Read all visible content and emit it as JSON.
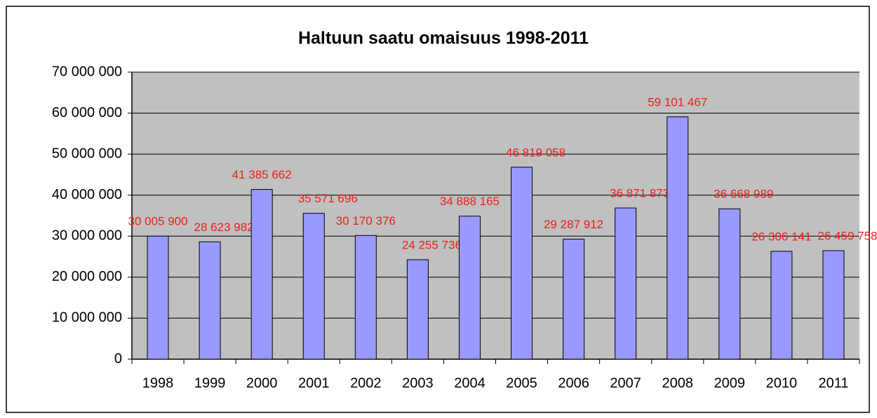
{
  "chart_data": {
    "type": "bar",
    "title": "Haltuun saatu omaisuus 1998-2011",
    "categories": [
      "1998",
      "1999",
      "2000",
      "2001",
      "2002",
      "2003",
      "2004",
      "2005",
      "2006",
      "2007",
      "2008",
      "2009",
      "2010",
      "2011"
    ],
    "values": [
      30005900,
      28623982,
      41385662,
      35571696,
      30170376,
      24255736,
      34888165,
      46819058,
      29287912,
      36871873,
      59101467,
      36668989,
      26306141,
      26459758
    ],
    "value_labels": [
      "30 005 900",
      "28 623 982",
      "41 385 662",
      "35 571 696",
      "30 170 376",
      "24 255 736",
      "34 888 165",
      "46 819 058",
      "29 287 912",
      "36 871 873",
      "59 101 467",
      "36 668 989",
      "26 306 141",
      "26 459 758"
    ],
    "color": "#9999ff",
    "label_color": "#e8201a",
    "plot_background": "#c0c0c0",
    "ylim": [
      0,
      70000000
    ],
    "yticks": [
      0,
      {
        "value": 10000000,
        "label": "10 000 000"
      },
      {
        "value": 20000000,
        "label": "20 000 000"
      },
      {
        "value": 30000000,
        "label": "30 000 000"
      },
      {
        "value": 40000000,
        "label": "40 000 000"
      },
      {
        "value": 50000000,
        "label": "50 000 000"
      },
      {
        "value": 60000000,
        "label": "60 000 000"
      },
      {
        "value": 70000000,
        "label": "70 000 000"
      }
    ],
    "grid": true
  }
}
